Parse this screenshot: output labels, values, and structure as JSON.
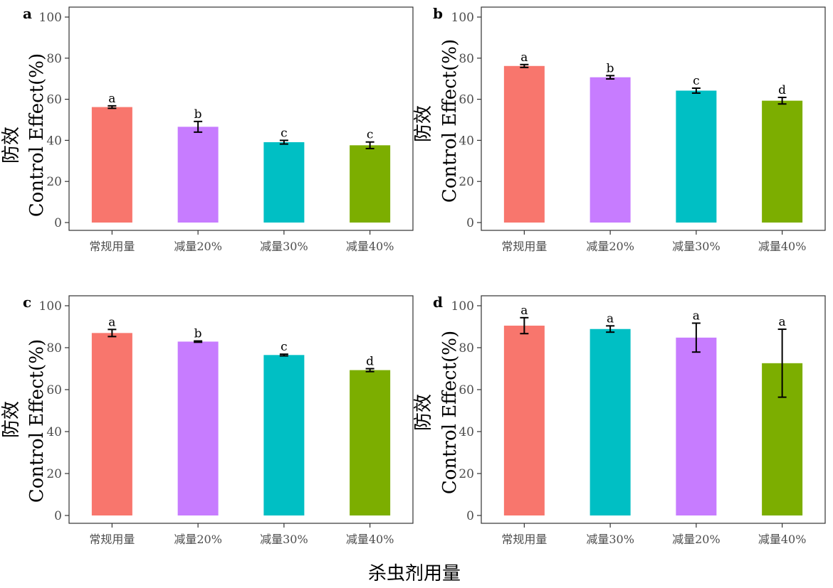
{
  "figure": {
    "shared_xlabel": "杀虫剂用量",
    "colors": {
      "red": "#F8766D",
      "purple": "#C77CFF",
      "teal": "#00BFC4",
      "green": "#7CAE00"
    }
  },
  "chart_data": [
    {
      "panel": "a",
      "type": "bar",
      "ylabel_cn": "防效",
      "ylabel": "Control Effect(%)",
      "xlabel": "",
      "ylim": [
        0,
        100
      ],
      "yticks": [
        0,
        20,
        40,
        60,
        80,
        100
      ],
      "grid": false,
      "categories": [
        "常规用量",
        "减量20%",
        "减量30%",
        "减量40%"
      ],
      "values": [
        56.2,
        46.6,
        39.1,
        37.6
      ],
      "errors": [
        0.6,
        2.6,
        0.9,
        1.6
      ],
      "letters": [
        "a",
        "b",
        "c",
        "c"
      ],
      "colors": [
        "#F8766D",
        "#C77CFF",
        "#00BFC4",
        "#7CAE00"
      ]
    },
    {
      "panel": "b",
      "type": "bar",
      "ylabel_cn": "防效",
      "ylabel": "Control Effect(%)",
      "xlabel": "",
      "ylim": [
        0,
        100
      ],
      "yticks": [
        0,
        20,
        40,
        60,
        80,
        100
      ],
      "grid": false,
      "categories": [
        "常规用量",
        "减量20%",
        "减量30%",
        "减量40%"
      ],
      "values": [
        76.2,
        70.7,
        64.2,
        59.3
      ],
      "errors": [
        0.7,
        0.8,
        1.2,
        1.6
      ],
      "letters": [
        "a",
        "b",
        "c",
        "d"
      ],
      "colors": [
        "#F8766D",
        "#C77CFF",
        "#00BFC4",
        "#7CAE00"
      ]
    },
    {
      "panel": "c",
      "type": "bar",
      "ylabel_cn": "防效",
      "ylabel": "Control Effect(%)",
      "xlabel": "",
      "ylim": [
        0,
        100
      ],
      "yticks": [
        0,
        20,
        40,
        60,
        80,
        100
      ],
      "grid": false,
      "categories": [
        "常规用量",
        "减量20%",
        "减量30%",
        "减量40%"
      ],
      "values": [
        87.0,
        82.9,
        76.5,
        69.3
      ],
      "errors": [
        1.7,
        0.3,
        0.4,
        0.7
      ],
      "letters": [
        "a",
        "b",
        "c",
        "d"
      ],
      "colors": [
        "#F8766D",
        "#C77CFF",
        "#00BFC4",
        "#7CAE00"
      ]
    },
    {
      "panel": "d",
      "type": "bar",
      "ylabel_cn": "防效",
      "ylabel": "Control Effect(%)",
      "xlabel": "",
      "ylim": [
        0,
        100
      ],
      "yticks": [
        0,
        20,
        40,
        60,
        80,
        100
      ],
      "grid": false,
      "categories": [
        "常规用量",
        "减量30%",
        "减量20%",
        "减量40%"
      ],
      "values": [
        90.5,
        88.9,
        84.8,
        72.6
      ],
      "errors": [
        3.8,
        1.5,
        6.9,
        16.2
      ],
      "letters": [
        "a",
        "a",
        "a",
        "a"
      ],
      "colors": [
        "#F8766D",
        "#00BFC4",
        "#C77CFF",
        "#7CAE00"
      ]
    }
  ]
}
